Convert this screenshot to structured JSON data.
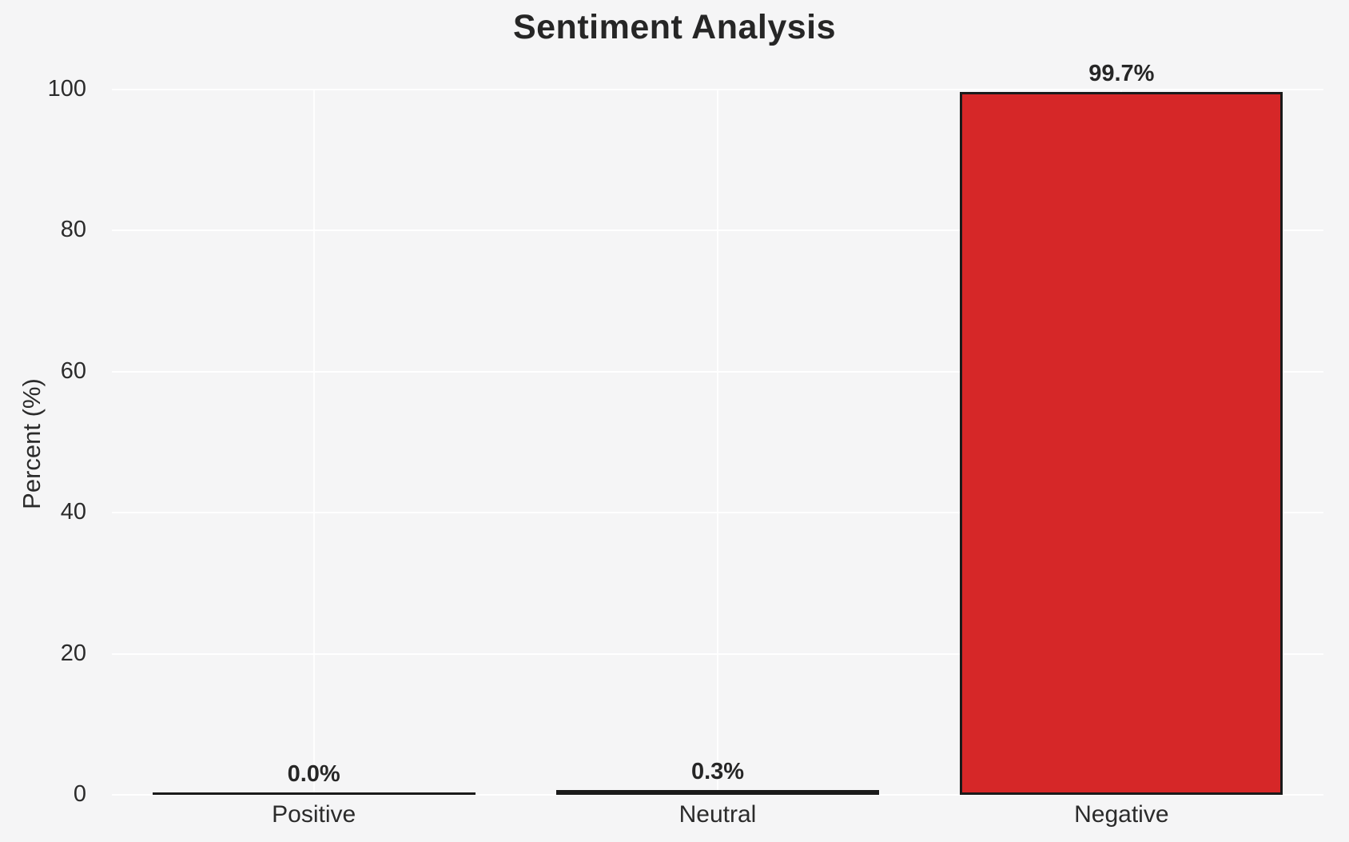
{
  "chart_data": {
    "type": "bar",
    "title": "Sentiment Analysis",
    "xlabel": "",
    "ylabel": "Percent (%)",
    "categories": [
      "Positive",
      "Neutral",
      "Negative"
    ],
    "values": [
      0.0,
      0.3,
      99.7
    ],
    "value_labels": [
      "0.0%",
      "0.3%",
      "99.7%"
    ],
    "yticks": [
      0,
      20,
      40,
      60,
      80,
      100
    ],
    "ylim": [
      0,
      100
    ],
    "grid": "on",
    "legend": "none",
    "bar_fill_colors": [
      "#1a1a1a",
      "#1a1a1a",
      "#d62728"
    ],
    "bar_edge_color": "#1a1a1a"
  },
  "colors": {
    "background": "#f5f5f6",
    "gridline": "#ffffff",
    "text": "#2b2b2b",
    "title_text": "#262626",
    "negative_bar": "#d62728",
    "bar_edge": "#1a1a1a"
  }
}
